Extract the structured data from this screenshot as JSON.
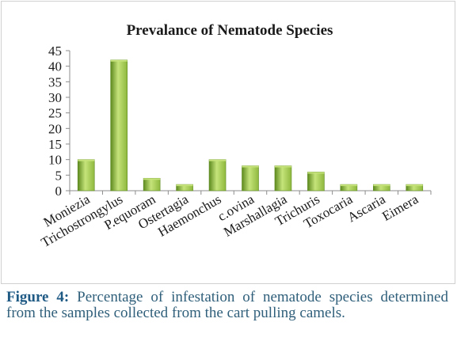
{
  "chart_data": {
    "type": "bar",
    "title": "Prevalance of Nematode Species",
    "categories": [
      "Moniezia",
      "Trichostrongylus",
      "P.equoram",
      "Ostertagia",
      "Haemonchus",
      "c.ovina",
      "Marshallagia",
      "Trichuris",
      "Toxocaria",
      "Ascaria",
      "Eimera"
    ],
    "values": [
      10,
      42,
      4,
      2,
      10,
      8,
      8,
      6,
      2,
      2,
      2
    ],
    "ylim": [
      0,
      45
    ],
    "yticks": [
      0,
      5,
      10,
      15,
      20,
      25,
      30,
      35,
      40,
      45
    ],
    "xlabel": "",
    "ylabel": "",
    "grid": false,
    "legend": "none",
    "bar_color": "#8fb93e",
    "bar_color_light": "#c5e37a",
    "bar_color_dark": "#5d8a1f"
  },
  "caption": {
    "label": "Figure 4:",
    "text": " Percentage of infestation of nematode species determined from the samples collected from the cart pulling camels."
  }
}
